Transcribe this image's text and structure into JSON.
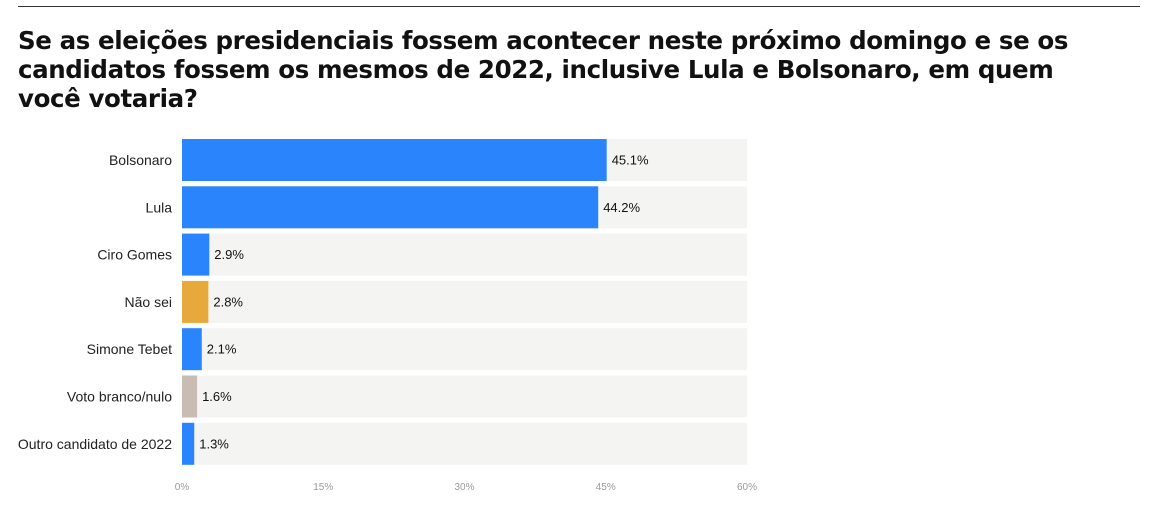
{
  "title": "Se as eleições presidenciais fossem acontecer neste próximo domingo e se os candidatos fossem os mesmos de 2022, inclusive Lula e Bolsonaro, em quem você votaria?",
  "chart_data": {
    "type": "bar",
    "orientation": "horizontal",
    "title": "Se as eleições presidenciais fossem acontecer neste próximo domingo e se os candidatos fossem os mesmos de 2022, inclusive Lula e Bolsonaro, em quem você votaria?",
    "categories": [
      "Bolsonaro",
      "Lula",
      "Ciro Gomes",
      "Não sei",
      "Simone Tebet",
      "Voto branco/nulo",
      "Outro candidato de 2022"
    ],
    "values": [
      45.1,
      44.2,
      2.9,
      2.8,
      2.1,
      1.6,
      1.3
    ],
    "value_labels": [
      "45.1%",
      "44.2%",
      "2.9%",
      "2.8%",
      "2.1%",
      "1.6%",
      "1.3%"
    ],
    "colors": [
      "#2a84fc",
      "#2a84fc",
      "#2a84fc",
      "#e8a93c",
      "#2a84fc",
      "#c9bcb3",
      "#2a84fc"
    ],
    "background_bar_color": "#f4f4f2",
    "xlim": [
      0,
      60
    ],
    "x_ticks": [
      0,
      15,
      30,
      45,
      60
    ],
    "x_tick_labels": [
      "0%",
      "15%",
      "30%",
      "45%",
      "60%"
    ],
    "grid": false,
    "legend": "none"
  }
}
